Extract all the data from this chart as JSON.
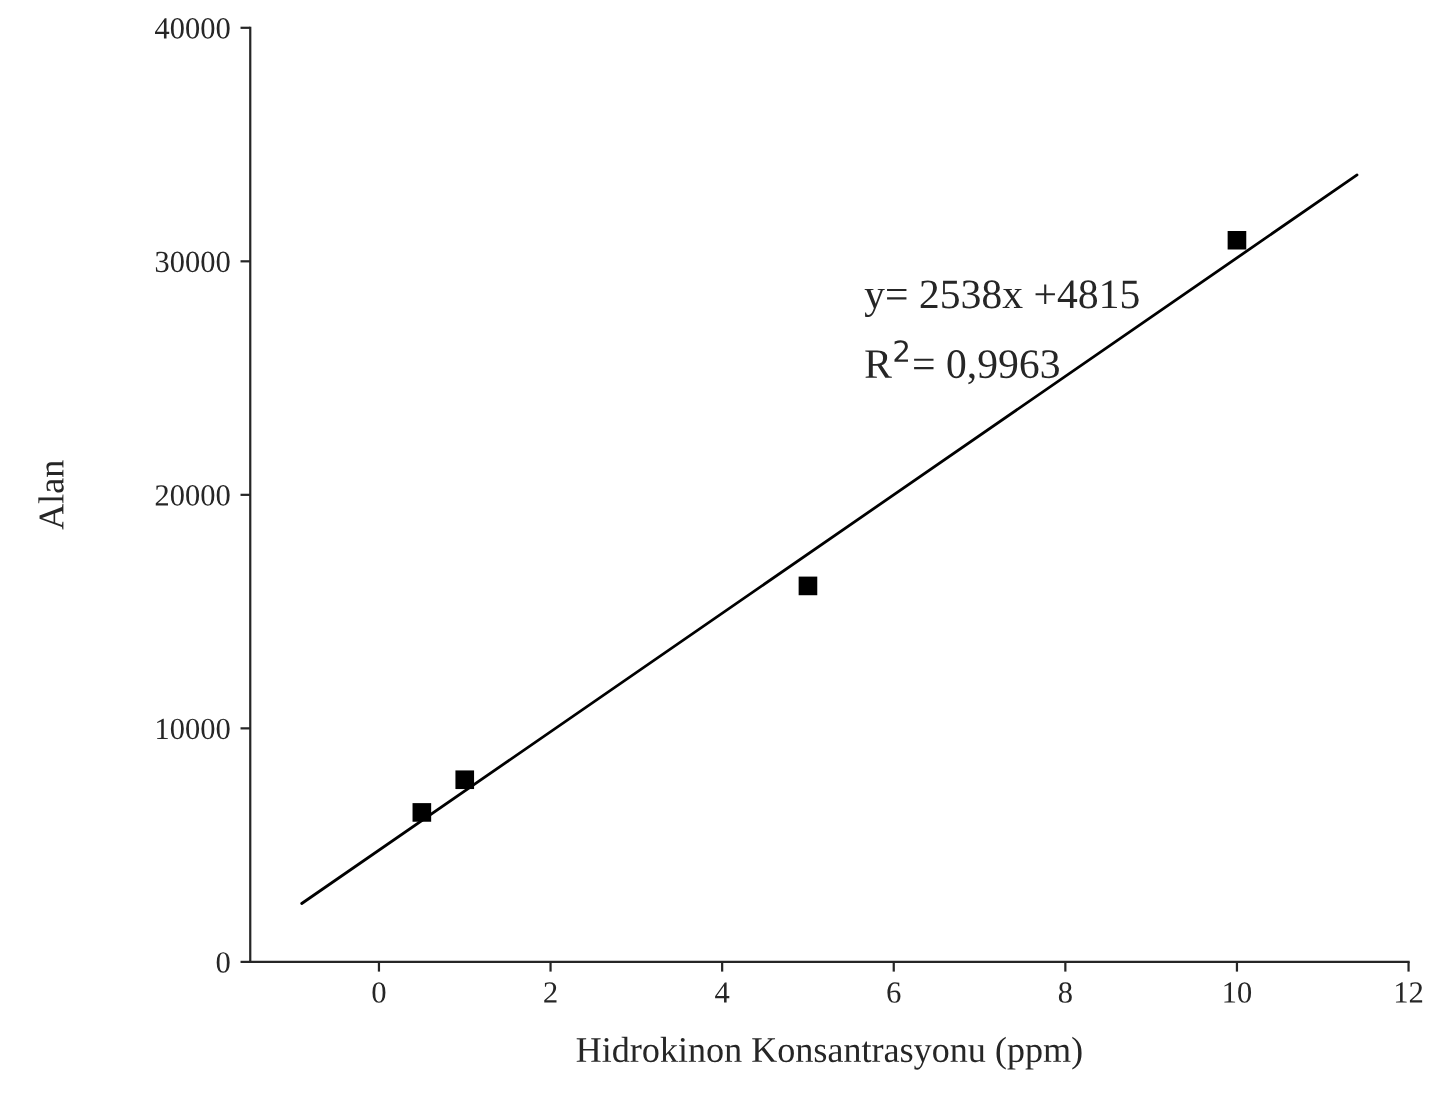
{
  "chart_data": {
    "type": "scatter",
    "xlabel": "Hidrokinon Konsantrasyonu (ppm)",
    "ylabel": "Alan",
    "series": [
      {
        "color": "#000000",
        "marker": "square",
        "x": [
          0.5,
          1,
          5,
          10
        ],
        "values": [
          6400,
          7800,
          16100,
          30900
        ]
      },
      {
        "type": "line",
        "color": "#000000",
        "marker": "none",
        "x": [
          -0.9,
          11.4
        ],
        "values": [
          2500,
          33700
        ]
      }
    ],
    "annotations": [
      "y= 2538x +4815",
      "R$^{2}$= 0,9963"
    ],
    "xlim": [
      -1.5,
      12
    ],
    "xticks": [
      0,
      2,
      4,
      6,
      8,
      10,
      12
    ],
    "ylim": [
      0,
      40000
    ],
    "yticks": [
      0,
      10000,
      20000,
      30000,
      40000
    ],
    "grid": false,
    "legend": false
  }
}
